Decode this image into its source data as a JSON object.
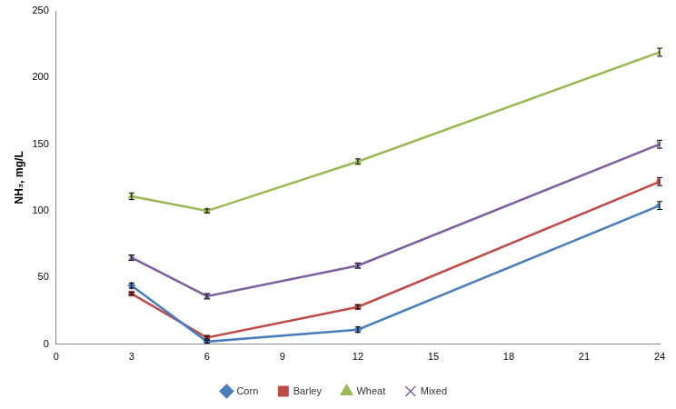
{
  "chart_data": {
    "type": "line",
    "y_label": "NH₃, mg/L",
    "x": [
      3,
      6,
      12,
      24
    ],
    "xlim": [
      0,
      24
    ],
    "xticks": [
      0,
      3,
      6,
      9,
      12,
      15,
      18,
      21,
      24
    ],
    "ylim": [
      0,
      250
    ],
    "yticks": [
      0,
      50,
      100,
      150,
      200,
      250
    ],
    "grid": false,
    "legend": "bottom",
    "series": [
      {
        "name": "Corn",
        "color": "#4a7ebb",
        "marker": "diamond",
        "values": [
          44,
          2,
          11,
          104
        ],
        "errors": [
          2,
          1,
          2,
          3
        ]
      },
      {
        "name": "Barley",
        "color": "#be4b48",
        "marker": "square",
        "values": [
          38,
          5,
          28,
          122
        ],
        "errors": [
          1,
          1,
          1.5,
          3
        ]
      },
      {
        "name": "Wheat",
        "color": "#98b954",
        "marker": "triangle",
        "values": [
          111,
          100,
          137,
          219
        ],
        "errors": [
          2.5,
          1.5,
          2,
          3
        ]
      },
      {
        "name": "Mixed",
        "color": "#7d60a0",
        "marker": "x",
        "values": [
          65,
          36,
          59,
          150
        ],
        "errors": [
          2,
          2,
          2,
          3
        ]
      }
    ]
  }
}
